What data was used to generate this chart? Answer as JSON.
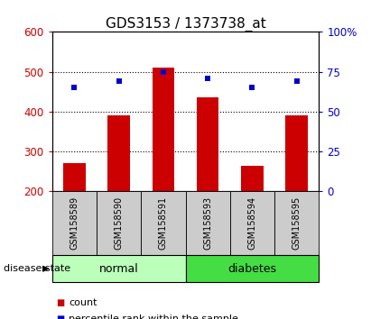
{
  "title": "GDS3153 / 1373738_at",
  "samples": [
    "GSM158589",
    "GSM158590",
    "GSM158591",
    "GSM158593",
    "GSM158594",
    "GSM158595"
  ],
  "counts": [
    270,
    390,
    510,
    435,
    265,
    390
  ],
  "percentiles": [
    65,
    69,
    75,
    71,
    65,
    69
  ],
  "ylim_left": [
    200,
    600
  ],
  "ylim_right": [
    0,
    100
  ],
  "yticks_left": [
    200,
    300,
    400,
    500,
    600
  ],
  "yticks_right": [
    0,
    25,
    50,
    75,
    100
  ],
  "ytick_labels_right": [
    "0",
    "25",
    "50",
    "75",
    "100%"
  ],
  "bar_color": "#cc0000",
  "dot_color": "#0000cc",
  "bar_bottom": 200,
  "group_labels": [
    "normal",
    "diabetes"
  ],
  "group_ranges": [
    [
      0,
      3
    ],
    [
      3,
      6
    ]
  ],
  "group_color_normal": "#bbffbb",
  "group_color_diabetes": "#44dd44",
  "label_color_left": "#cc0000",
  "label_color_right": "#0000cc",
  "disease_state_label": "disease state",
  "legend_count_label": "count",
  "legend_percentile_label": "percentile rank within the sample",
  "sample_box_color": "#cccccc",
  "plot_bg_color": "#ffffff",
  "grid_color": "#000000",
  "figsize": [
    4.11,
    3.54
  ],
  "dpi": 100
}
